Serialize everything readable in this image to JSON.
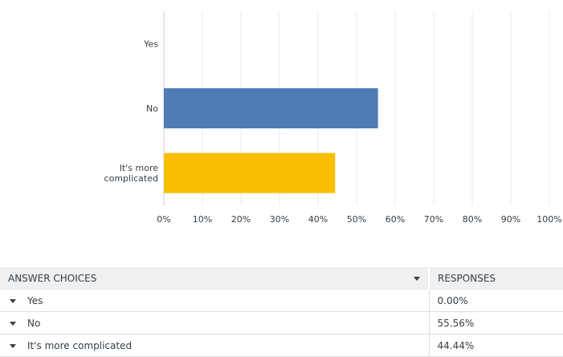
{
  "chart_data": {
    "type": "bar",
    "orientation": "horizontal",
    "categories": [
      "Yes",
      "No",
      "It's more complicated"
    ],
    "category_lines": [
      [
        "Yes"
      ],
      [
        "No"
      ],
      [
        "It's more",
        "complicated"
      ]
    ],
    "values": [
      0,
      55.56,
      44.44
    ],
    "colors": [
      "#507cb6",
      "#507cb6",
      "#f9be00"
    ],
    "xlim": [
      0,
      100
    ],
    "x_ticks": [
      "0%",
      "10%",
      "20%",
      "30%",
      "40%",
      "50%",
      "60%",
      "70%",
      "80%",
      "90%",
      "100%"
    ],
    "grid": true,
    "title": "",
    "xlabel": "",
    "ylabel": ""
  },
  "table": {
    "headers": {
      "choices": "ANSWER CHOICES",
      "responses": "RESPONSES"
    },
    "sort_icon": "chevron-down-icon",
    "row_icon": "chevron-down-icon",
    "rows": [
      {
        "choice": "Yes",
        "response": "0.00%"
      },
      {
        "choice": "No",
        "response": "55.56%"
      },
      {
        "choice": "It's more complicated",
        "response": "44.44%"
      }
    ]
  }
}
